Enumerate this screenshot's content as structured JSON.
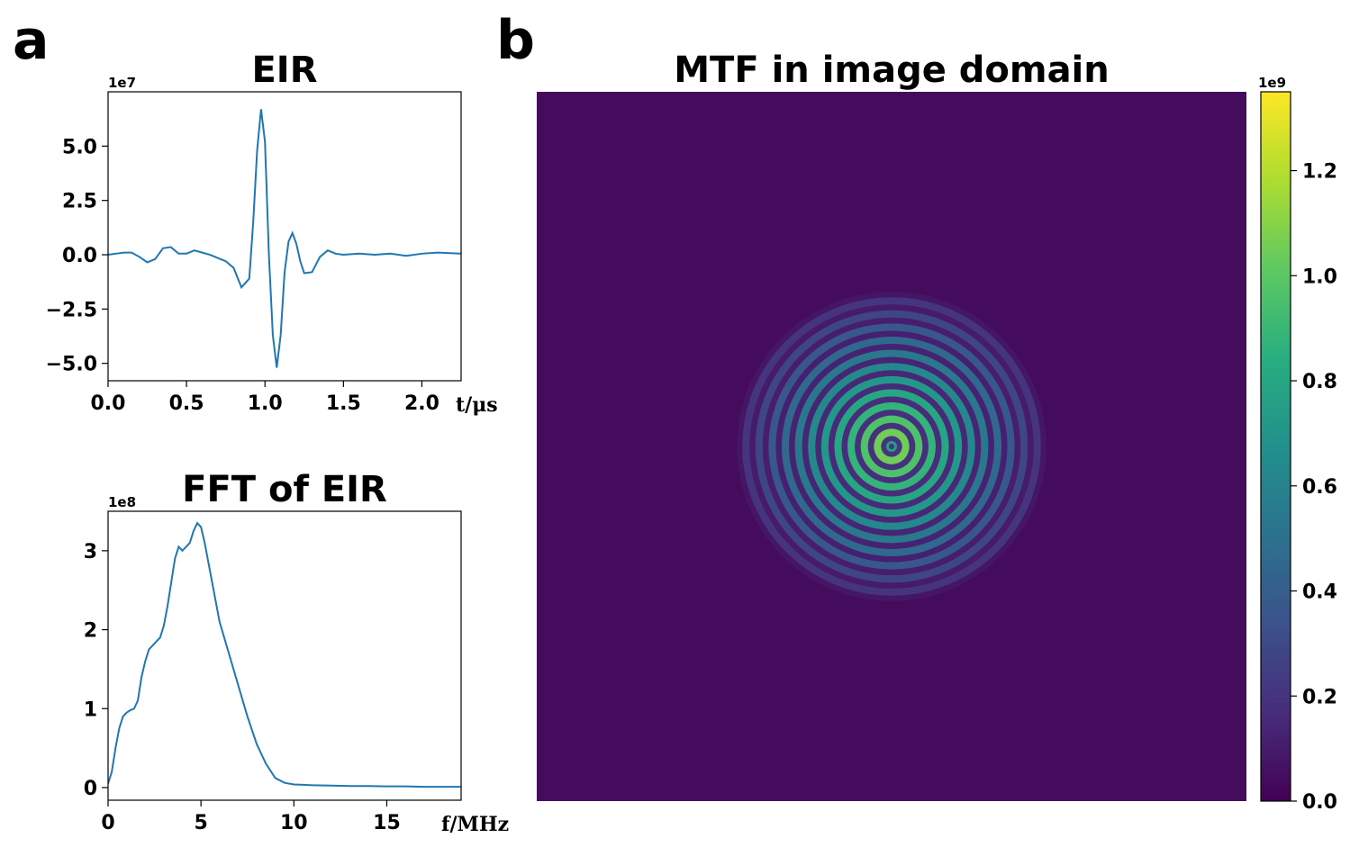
{
  "panel_a_letter": "a",
  "panel_b_letter": "b",
  "chart_data": [
    {
      "type": "line",
      "title": "EIR",
      "xlabel": "t/μs",
      "ylabel": "",
      "y_offset_label": "1e7",
      "xlim": [
        0.0,
        2.25
      ],
      "ylim": [
        -5.8,
        7.5
      ],
      "x_ticks": [
        0.0,
        0.5,
        1.0,
        1.5,
        2.0
      ],
      "x_tick_labels": [
        "0.0",
        "0.5",
        "1.0",
        "1.5",
        "2.0"
      ],
      "y_ticks": [
        5.0,
        2.5,
        0.0,
        -2.5,
        -5.0
      ],
      "y_tick_labels": [
        "5.0",
        "2.5",
        "0.0",
        "−2.5",
        "−5.0"
      ],
      "grid": false,
      "color": "#1f77b4",
      "series": [
        {
          "x": [
            0.0,
            0.05,
            0.1,
            0.15,
            0.2,
            0.25,
            0.3,
            0.35,
            0.4,
            0.45,
            0.5,
            0.55,
            0.6,
            0.65,
            0.7,
            0.75,
            0.8,
            0.85,
            0.9,
            0.925,
            0.95,
            0.975,
            1.0,
            1.025,
            1.05,
            1.075,
            1.1,
            1.125,
            1.15,
            1.175,
            1.2,
            1.225,
            1.25,
            1.3,
            1.35,
            1.4,
            1.45,
            1.5,
            1.6,
            1.7,
            1.8,
            1.9,
            2.0,
            2.1,
            2.25
          ],
          "y": [
            0.0,
            0.05,
            0.1,
            0.1,
            -0.1,
            -0.35,
            -0.2,
            0.3,
            0.35,
            0.05,
            0.05,
            0.2,
            0.1,
            0.0,
            -0.15,
            -0.3,
            -0.6,
            -1.5,
            -1.1,
            1.5,
            4.8,
            6.7,
            5.2,
            0.0,
            -3.7,
            -5.2,
            -3.7,
            -0.8,
            0.6,
            1.0,
            0.5,
            -0.3,
            -0.85,
            -0.8,
            -0.1,
            0.2,
            0.05,
            0.0,
            0.05,
            0.0,
            0.05,
            -0.05,
            0.05,
            0.1,
            0.05
          ]
        }
      ]
    },
    {
      "type": "line",
      "title": "FFT of EIR",
      "xlabel": "f/MHz",
      "ylabel": "",
      "y_offset_label": "1e8",
      "xlim": [
        0,
        19
      ],
      "ylim": [
        -0.16,
        3.5
      ],
      "x_ticks": [
        0,
        5,
        10,
        15
      ],
      "x_tick_labels": [
        "0",
        "5",
        "10",
        "15"
      ],
      "y_ticks": [
        3,
        2,
        1,
        0
      ],
      "y_tick_labels": [
        "3",
        "2",
        "1",
        "0"
      ],
      "grid": false,
      "color": "#1f77b4",
      "series": [
        {
          "x": [
            0.0,
            0.2,
            0.4,
            0.6,
            0.8,
            1.0,
            1.2,
            1.4,
            1.6,
            1.8,
            2.0,
            2.2,
            2.4,
            2.6,
            2.8,
            3.0,
            3.2,
            3.4,
            3.6,
            3.8,
            4.0,
            4.2,
            4.4,
            4.6,
            4.8,
            5.0,
            5.2,
            5.4,
            5.6,
            5.8,
            6.0,
            6.5,
            7.0,
            7.5,
            8.0,
            8.5,
            9.0,
            9.5,
            10.0,
            10.5,
            11.0,
            12.0,
            13.0,
            14.0,
            15.0,
            16.0,
            17.0,
            18.0,
            19.0
          ],
          "y": [
            0.05,
            0.2,
            0.5,
            0.75,
            0.9,
            0.95,
            0.98,
            1.0,
            1.1,
            1.4,
            1.6,
            1.75,
            1.8,
            1.85,
            1.9,
            2.05,
            2.3,
            2.6,
            2.9,
            3.05,
            3.0,
            3.05,
            3.1,
            3.25,
            3.35,
            3.3,
            3.1,
            2.85,
            2.6,
            2.35,
            2.1,
            1.7,
            1.3,
            0.9,
            0.55,
            0.3,
            0.12,
            0.06,
            0.04,
            0.035,
            0.03,
            0.025,
            0.02,
            0.02,
            0.015,
            0.015,
            0.01,
            0.01,
            0.01
          ]
        }
      ]
    },
    {
      "type": "heatmap",
      "title": "MTF in image domain",
      "xlabel": "",
      "ylabel": "",
      "colormap": "viridis",
      "colorbar_offset_label": "1e9",
      "colorbar_range": [
        0.0,
        1.35
      ],
      "colorbar_ticks": [
        0.0,
        0.2,
        0.4,
        0.6,
        0.8,
        1.0,
        1.2
      ],
      "colorbar_tick_labels": [
        "0.0",
        "0.2",
        "0.4",
        "0.6",
        "0.8",
        "1.0",
        "1.2"
      ],
      "background_value": 0.04,
      "rings": {
        "count": 11,
        "center_ring_peak": 1.05,
        "outer_ring_peak": 0.2
      }
    }
  ]
}
